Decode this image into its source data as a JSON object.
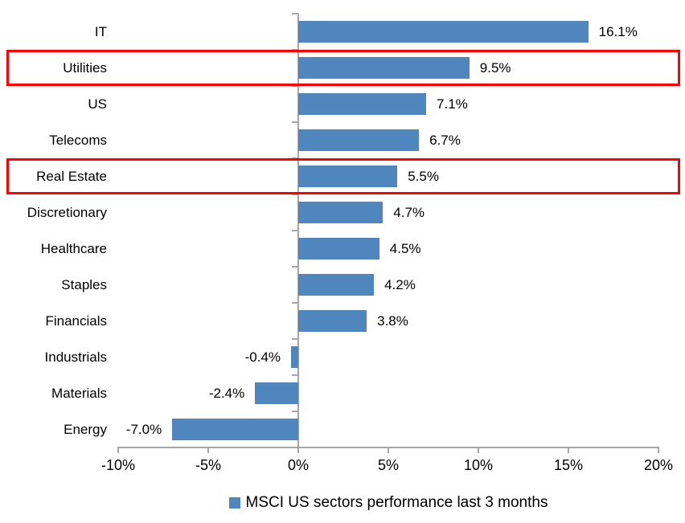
{
  "chart_data": {
    "type": "bar",
    "orientation": "horizontal",
    "categories": [
      "IT",
      "Utilities",
      "US",
      "Telecoms",
      "Real Estate",
      "Discretionary",
      "Healthcare",
      "Staples",
      "Financials",
      "Industrials",
      "Materials",
      "Energy"
    ],
    "values": [
      16.1,
      9.5,
      7.1,
      6.7,
      5.5,
      4.7,
      4.5,
      4.2,
      3.8,
      -0.4,
      -2.4,
      -7.0
    ],
    "data_labels": [
      "16.1%",
      "9.5%",
      "7.1%",
      "6.7%",
      "5.5%",
      "4.7%",
      "4.5%",
      "4.2%",
      "3.8%",
      "-0.4%",
      "-2.4%",
      "-7.0%"
    ],
    "highlighted_categories": [
      "Utilities",
      "Real Estate"
    ],
    "x_axis": {
      "min": -10,
      "max": 20,
      "tick_values": [
        -10,
        -5,
        0,
        5,
        10,
        15,
        20
      ],
      "ticks": [
        "-10%",
        "-5%",
        "0%",
        "5%",
        "10%",
        "15%",
        "20%"
      ]
    },
    "grid": false,
    "legend": {
      "position": "bottom",
      "marker": "square",
      "label": "MSCI US sectors performance last 3 months"
    },
    "colors": {
      "bar": "#4E86BD",
      "highlight_box": "#FF0000",
      "axis": "#A6A6A6",
      "text": "#000000"
    }
  }
}
